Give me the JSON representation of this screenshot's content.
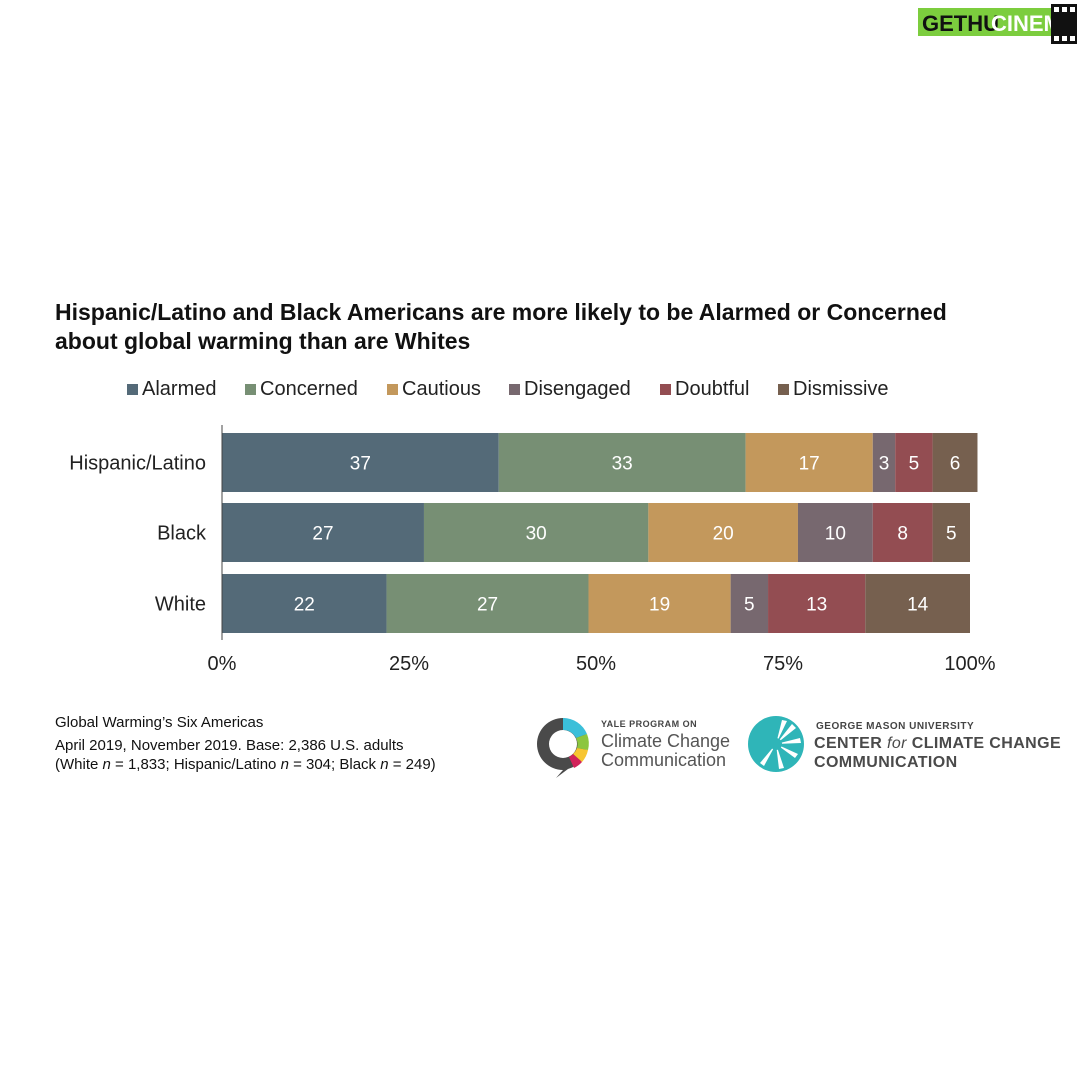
{
  "watermark": {
    "text_part1": "GETHU",
    "text_part2": "CINEMA"
  },
  "chart_data": {
    "type": "bar",
    "orientation": "horizontal",
    "stacked": true,
    "title_line1": "Hispanic/Latino and Black Americans are more likely to be Alarmed or Concerned",
    "title_line2": "about global warming than are Whites",
    "categories": [
      "Hispanic/Latino",
      "Black",
      "White"
    ],
    "series": [
      {
        "name": "Alarmed",
        "color": "#546a78",
        "values": [
          37,
          27,
          22
        ]
      },
      {
        "name": "Concerned",
        "color": "#778f74",
        "values": [
          33,
          30,
          27
        ]
      },
      {
        "name": "Cautious",
        "color": "#c3985c",
        "values": [
          17,
          20,
          19
        ]
      },
      {
        "name": "Disengaged",
        "color": "#77686f",
        "values": [
          3,
          10,
          5
        ]
      },
      {
        "name": "Doubtful",
        "color": "#934d52",
        "values": [
          5,
          8,
          13
        ]
      },
      {
        "name": "Dismissive",
        "color": "#76604f",
        "values": [
          6,
          5,
          14
        ]
      }
    ],
    "xticks": [
      "0%",
      "25%",
      "50%",
      "75%",
      "100%"
    ],
    "xlim": [
      0,
      100
    ],
    "legend_position": "top",
    "grid": false
  },
  "footnote": {
    "line1": "Global Warming’s Six Americas",
    "line2": "April 2019, November 2019. Base: 2,386 U.S. adults",
    "line3_prefix": "(White ",
    "line3_n1": "n",
    "line3_mid1": " = 1,833; Hispanic/Latino ",
    "line3_n2": "n",
    "line3_mid2": " = 304; Black ",
    "line3_n3": "n",
    "line3_suffix": " = 249)"
  },
  "logos": {
    "yale": {
      "small": "YALE PROGRAM ON",
      "line1": "Climate Change",
      "line2": "Communication"
    },
    "gmu": {
      "small": "GEORGE MASON UNIVERSITY",
      "line1_a": "CENTER ",
      "line1_b": "for",
      "line1_c": " CLIMATE CHANGE",
      "line2": "COMMUNICATION"
    }
  }
}
